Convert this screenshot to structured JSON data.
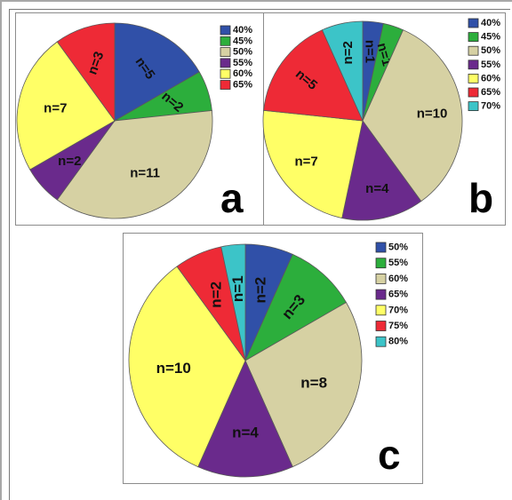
{
  "chart_data": [
    {
      "type": "pie",
      "panel_label": "a",
      "legend_placement": "top-right",
      "slices": [
        {
          "legend": "40%",
          "label": "n=5",
          "value": 5,
          "color": "#3050a8"
        },
        {
          "legend": "45%",
          "label": "n=2",
          "value": 2,
          "color": "#2cae3c"
        },
        {
          "legend": "50%",
          "label": "n=11",
          "value": 11,
          "color": "#d6d1a3"
        },
        {
          "legend": "55%",
          "label": "n=2",
          "value": 2,
          "color": "#6a2a8c"
        },
        {
          "legend": "60%",
          "label": "n=7",
          "value": 7,
          "color": "#ffff66"
        },
        {
          "legend": "65%",
          "label": "n=3",
          "value": 3,
          "color": "#ee2a36"
        }
      ]
    },
    {
      "type": "pie",
      "panel_label": "b",
      "legend_placement": "top-right",
      "slices": [
        {
          "legend": "40%",
          "label": "n=1",
          "value": 1,
          "color": "#3050a8"
        },
        {
          "legend": "45%",
          "label": "n=1",
          "value": 1,
          "color": "#2cae3c"
        },
        {
          "legend": "50%",
          "label": "n=10",
          "value": 10,
          "color": "#d6d1a3"
        },
        {
          "legend": "55%",
          "label": "n=4",
          "value": 4,
          "color": "#6a2a8c"
        },
        {
          "legend": "60%",
          "label": "n=7",
          "value": 7,
          "color": "#ffff66"
        },
        {
          "legend": "65%",
          "label": "n=5",
          "value": 5,
          "color": "#ee2a36"
        },
        {
          "legend": "70%",
          "label": "n=2",
          "value": 2,
          "color": "#3cc4c8"
        }
      ]
    },
    {
      "type": "pie",
      "panel_label": "c",
      "legend_placement": "top-right",
      "slices": [
        {
          "legend": "50%",
          "label": "n=2",
          "value": 2,
          "color": "#3050a8"
        },
        {
          "legend": "55%",
          "label": "n=3",
          "value": 3,
          "color": "#2cae3c"
        },
        {
          "legend": "60%",
          "label": "n=8",
          "value": 8,
          "color": "#d6d1a3"
        },
        {
          "legend": "65%",
          "label": "n=4",
          "value": 4,
          "color": "#6a2a8c"
        },
        {
          "legend": "70%",
          "label": "n=10",
          "value": 10,
          "color": "#ffff66"
        },
        {
          "legend": "75%",
          "label": "n=2",
          "value": 2,
          "color": "#ee2a36"
        },
        {
          "legend": "80%",
          "label": "n=1",
          "value": 1,
          "color": "#3cc4c8"
        }
      ]
    }
  ]
}
